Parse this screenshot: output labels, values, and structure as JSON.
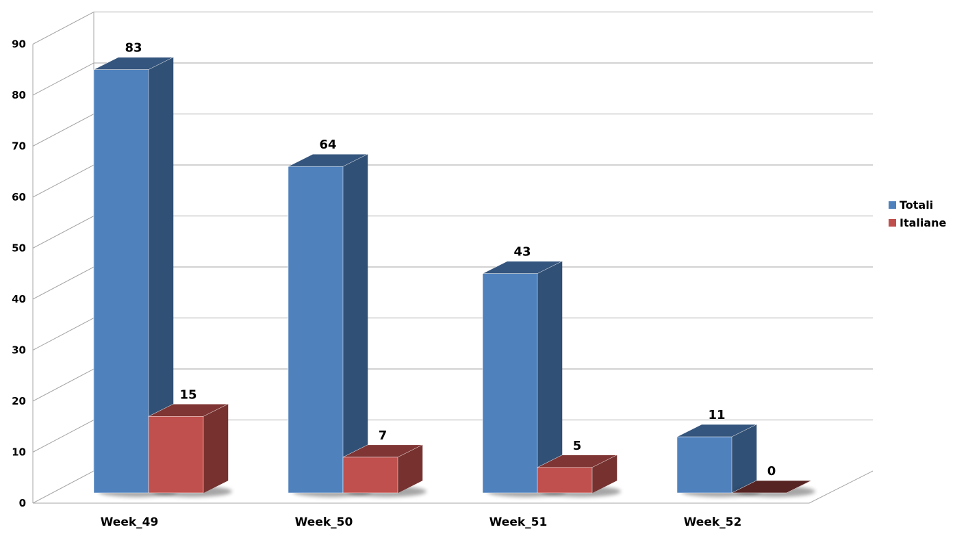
{
  "chart_data": {
    "type": "bar",
    "categories": [
      "Week_49",
      "Week_50",
      "Week_51",
      "Week_52"
    ],
    "series": [
      {
        "name": "Totali",
        "values": [
          83,
          64,
          43,
          11
        ],
        "color": "#4f81bd"
      },
      {
        "name": "Italiane",
        "values": [
          15,
          7,
          5,
          0
        ],
        "color": "#c0504d"
      }
    ],
    "title": "",
    "xlabel": "",
    "ylabel": "",
    "ylim": [
      0,
      90
    ],
    "yticks": [
      0,
      10,
      20,
      30,
      40,
      50,
      60,
      70,
      80,
      90
    ],
    "grid": true,
    "legend": "right",
    "style": "3d-column"
  }
}
